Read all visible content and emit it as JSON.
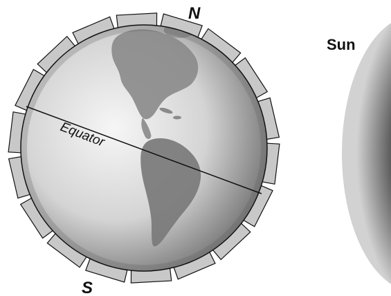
{
  "labels": {
    "north": "N",
    "south": "S",
    "equator": "Equator",
    "sun": "Sun"
  },
  "colors": {
    "background": "#ffffff",
    "panel_fill": "#c8c8c8",
    "outline": "#111111",
    "globe_light": "#f4f4f4",
    "globe_dark": "#6e6e6e",
    "land": "#8a8a8a",
    "sun_light": "#d8d8d8",
    "sun_dark": "#303030"
  },
  "panels": {
    "count": 18
  }
}
